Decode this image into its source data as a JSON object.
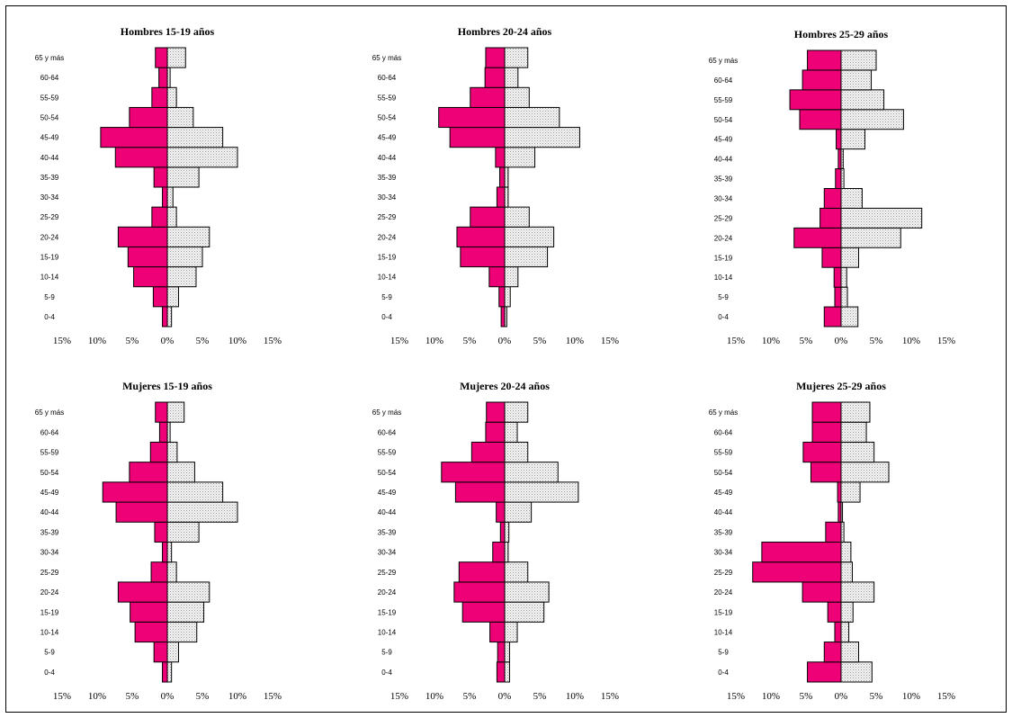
{
  "chart_data": [
    {
      "type": "bar",
      "orientation": "horizontal",
      "title": "Hombres 15-19 años",
      "categories": [
        "0-4",
        "5-9",
        "10-14",
        "15-19",
        "20-24",
        "25-29",
        "30-34",
        "35-39",
        "40-44",
        "45-49",
        "50-54",
        "55-59",
        "60-64",
        "65 y más"
      ],
      "series": [
        {
          "color": "#ee0077",
          "values": [
            -0.7,
            -2.0,
            -4.8,
            -5.6,
            -7.0,
            -2.2,
            -0.7,
            -1.9,
            -7.4,
            -9.5,
            -5.4,
            -2.2,
            -1.2,
            -1.7
          ]
        },
        {
          "color": "#e6e6e6",
          "values": [
            0.6,
            1.6,
            4.1,
            5.0,
            6.0,
            1.3,
            0.8,
            4.5,
            10.0,
            7.9,
            3.7,
            1.3,
            0.4,
            2.6
          ]
        }
      ],
      "xlim": [
        -15,
        15
      ],
      "xticks": [
        "15%",
        "10%",
        "5%",
        "0%",
        "5%",
        "10%",
        "15%"
      ]
    },
    {
      "type": "bar",
      "orientation": "horizontal",
      "title": "Hombres 20-24 años",
      "categories": [
        "0-4",
        "5-9",
        "10-14",
        "15-19",
        "20-24",
        "25-29",
        "30-34",
        "35-39",
        "40-44",
        "45-49",
        "50-54",
        "55-59",
        "60-64",
        "65 y más"
      ],
      "series": [
        {
          "color": "#ee0077",
          "values": [
            -0.5,
            -0.8,
            -2.2,
            -6.3,
            -6.8,
            -4.9,
            -1.1,
            -0.7,
            -1.3,
            -7.8,
            -9.4,
            -4.9,
            -2.8,
            -2.7
          ]
        },
        {
          "color": "#e6e6e6",
          "values": [
            0.3,
            0.8,
            1.9,
            6.1,
            7.0,
            3.5,
            0.5,
            0.5,
            4.3,
            10.7,
            7.8,
            3.5,
            1.9,
            3.3
          ]
        }
      ],
      "xlim": [
        -15,
        15
      ],
      "xticks": [
        "15%",
        "10%",
        "5%",
        "0%",
        "5%",
        "10%",
        "15%"
      ]
    },
    {
      "type": "bar",
      "orientation": "horizontal",
      "title": "Hombres 25-29 años",
      "categories": [
        "0-4",
        "5-9",
        "10-14",
        "15-19",
        "20-24",
        "25-29",
        "30-34",
        "35-39",
        "40-44",
        "45-49",
        "50-54",
        "55-59",
        "60-64",
        "65 y más"
      ],
      "series": [
        {
          "color": "#ee0077",
          "values": [
            -2.4,
            -0.9,
            -1.0,
            -2.7,
            -6.7,
            -3.0,
            -2.4,
            -0.8,
            -0.4,
            -0.7,
            -5.9,
            -7.3,
            -5.5,
            -4.8
          ]
        },
        {
          "color": "#e6e6e6",
          "values": [
            2.4,
            0.9,
            0.8,
            2.5,
            8.5,
            11.5,
            3.0,
            0.4,
            0.3,
            3.4,
            8.9,
            6.1,
            4.3,
            5.0
          ]
        }
      ],
      "xlim": [
        -15,
        15
      ],
      "xticks": [
        "15%",
        "10%",
        "5%",
        "0%",
        "5%",
        "10%",
        "15%"
      ]
    },
    {
      "type": "bar",
      "orientation": "horizontal",
      "title": "Mujeres 15-19 años",
      "categories": [
        "0-4",
        "5-9",
        "10-14",
        "15-19",
        "20-24",
        "25-29",
        "30-34",
        "35-39",
        "40-44",
        "45-49",
        "50-54",
        "55-59",
        "60-64",
        "65 y más"
      ],
      "series": [
        {
          "color": "#ee0077",
          "values": [
            -0.7,
            -1.9,
            -4.6,
            -5.3,
            -7.0,
            -2.3,
            -0.7,
            -1.8,
            -7.3,
            -9.2,
            -5.4,
            -2.4,
            -1.1,
            -1.7
          ]
        },
        {
          "color": "#e6e6e6",
          "values": [
            0.6,
            1.6,
            4.2,
            5.2,
            6.0,
            1.3,
            0.6,
            4.5,
            10.0,
            7.9,
            3.9,
            1.4,
            0.4,
            2.4
          ]
        }
      ],
      "xlim": [
        -15,
        15
      ],
      "xticks": [
        "15%",
        "10%",
        "5%",
        "0%",
        "5%",
        "10%",
        "15%"
      ]
    },
    {
      "type": "bar",
      "orientation": "horizontal",
      "title": "Mujeres 20-24 años",
      "categories": [
        "0-4",
        "5-9",
        "10-14",
        "15-19",
        "20-24",
        "25-29",
        "30-34",
        "35-39",
        "40-44",
        "45-49",
        "50-54",
        "55-59",
        "60-64",
        "65 y más"
      ],
      "series": [
        {
          "color": "#ee0077",
          "values": [
            -1.1,
            -1.0,
            -2.1,
            -6.0,
            -7.2,
            -6.5,
            -1.7,
            -0.6,
            -1.2,
            -7.0,
            -9.0,
            -4.7,
            -2.7,
            -2.6
          ]
        },
        {
          "color": "#e6e6e6",
          "values": [
            0.7,
            0.7,
            1.8,
            5.6,
            6.3,
            3.3,
            0.5,
            0.6,
            3.8,
            10.5,
            7.6,
            3.3,
            1.8,
            3.3
          ]
        }
      ],
      "xlim": [
        -15,
        15
      ],
      "xticks": [
        "15%",
        "10%",
        "5%",
        "0%",
        "5%",
        "10%",
        "15%"
      ]
    },
    {
      "type": "bar",
      "orientation": "horizontal",
      "title": "Mujeres 25-29 años",
      "categories": [
        "0-4",
        "5-9",
        "10-14",
        "15-19",
        "20-24",
        "25-29",
        "30-34",
        "35-39",
        "40-44",
        "45-49",
        "50-54",
        "55-59",
        "60-64",
        "65 y más"
      ],
      "series": [
        {
          "color": "#ee0077",
          "values": [
            -4.8,
            -2.4,
            -0.9,
            -1.9,
            -5.5,
            -12.6,
            -11.3,
            -2.2,
            -0.4,
            -0.5,
            -4.3,
            -5.4,
            -4.1,
            -4.1
          ]
        },
        {
          "color": "#e6e6e6",
          "values": [
            4.4,
            2.5,
            1.1,
            1.7,
            4.7,
            1.6,
            1.4,
            0.4,
            0.2,
            2.7,
            6.8,
            4.7,
            3.6,
            4.1
          ]
        }
      ],
      "xlim": [
        -15,
        15
      ],
      "xticks": [
        "15%",
        "10%",
        "5%",
        "0%",
        "5%",
        "10%",
        "15%"
      ]
    }
  ]
}
